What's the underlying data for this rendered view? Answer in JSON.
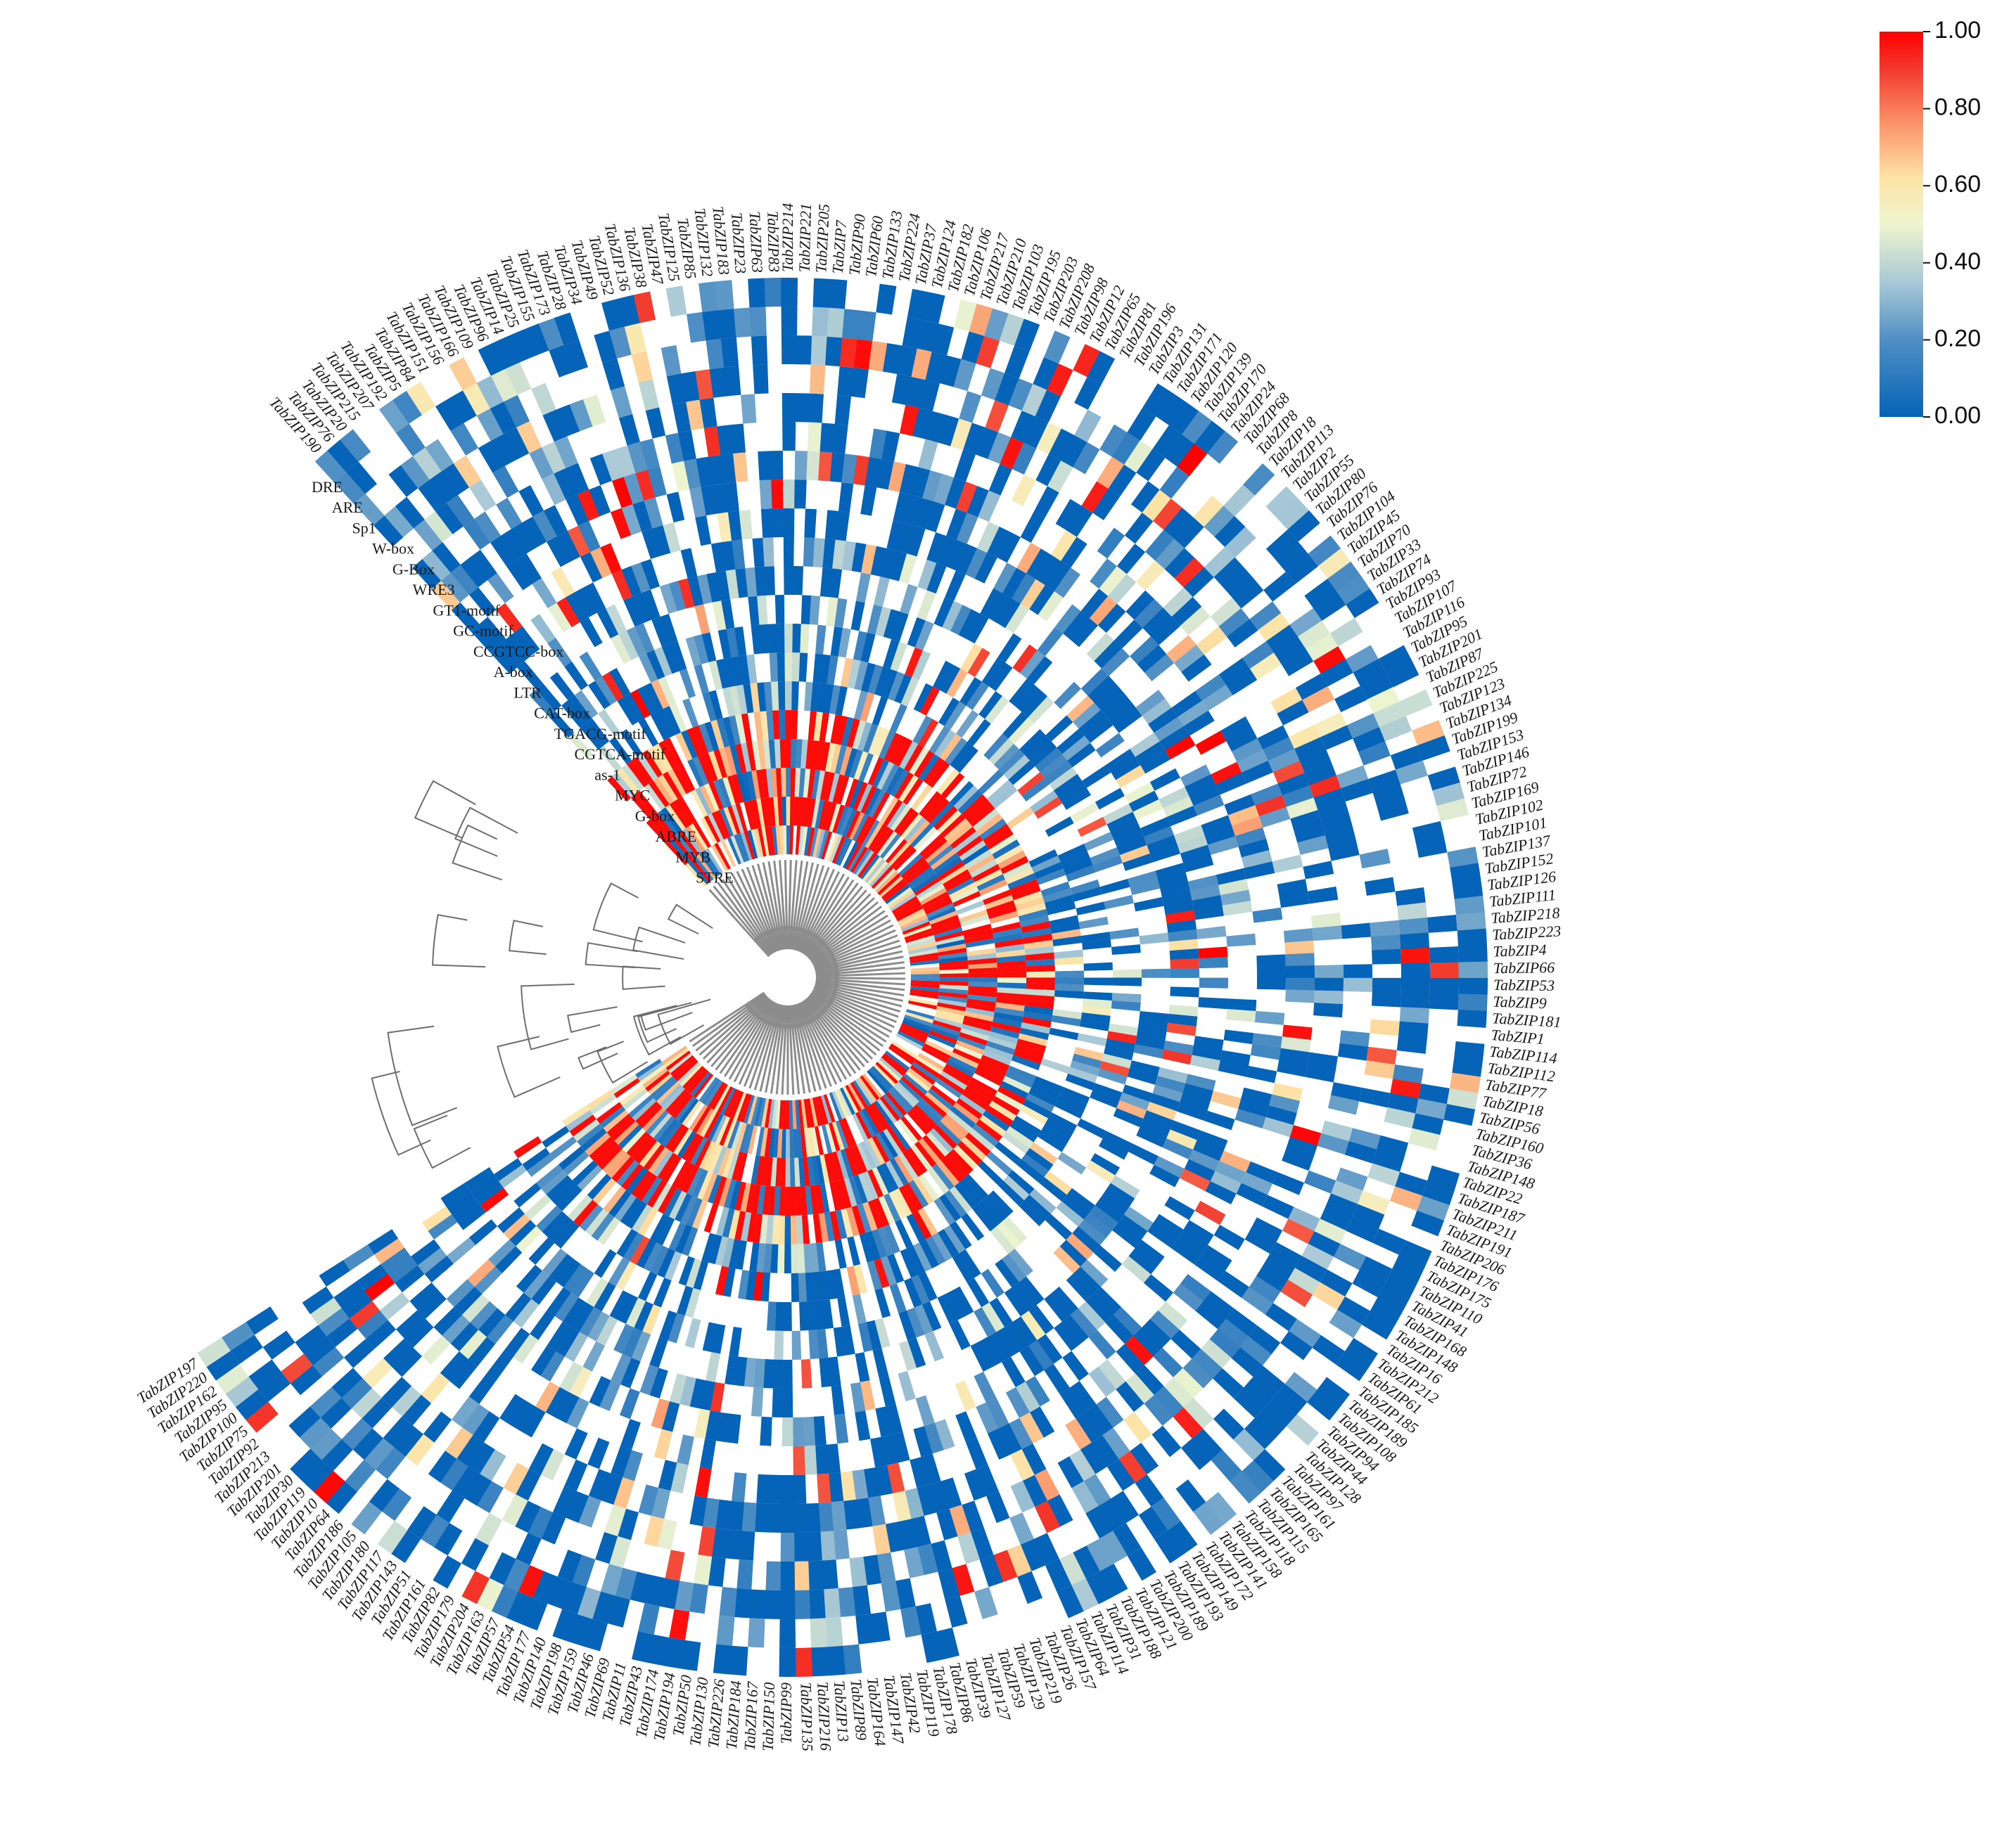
{
  "chart_data": {
    "type": "heatmap",
    "layout": "circular fan heatmap with hierarchical clustering dendrogram",
    "title": "",
    "colorbar": {
      "ticks": [
        "1.00",
        "0.80",
        "0.60",
        "0.40",
        "0.20",
        "0.00"
      ],
      "range": [
        0,
        1
      ],
      "colors": [
        "#0563b8",
        "#9ec7de",
        "#f3f9cc",
        "#fdbf82",
        "#f23b2e",
        "#ff0000"
      ],
      "placement": "top-right"
    },
    "motifs": [
      "STRE",
      "MYB",
      "ABRE",
      "G-box",
      "MYC",
      "as-1",
      "CGTCA-motif",
      "TGACG-motif",
      "CAT-box",
      "LTR",
      "A-box",
      "CCGTCC-box",
      "GC-motif",
      "GT1-motif",
      "WRE3",
      "G-Box",
      "W-box",
      "Sp1",
      "ARE",
      "DRE"
    ],
    "genes": [
      "TabZIP190",
      "TabZIP76",
      "TabZIP20",
      "TabZIP215",
      "TabZIP207",
      "TabZIP192",
      "TabZIP5",
      "TabZIP84",
      "TabZIP151",
      "TabZIP156",
      "TabZIP166",
      "TabZIP109",
      "TabZIP96",
      "TabZIP14",
      "TabZIP25",
      "TabZIP155",
      "TabZIP173",
      "TabZIP28",
      "TabZIP34",
      "TabZIP49",
      "TabZIP52",
      "TabZIP136",
      "TabZIP38",
      "TabZIP47",
      "TabZIP125",
      "TabZIP85",
      "TabZIP132",
      "TabZIP183",
      "TabZIP23",
      "TabZIP63",
      "TabZIP83",
      "TabZIP214",
      "TabZIP221",
      "TabZIP205",
      "TabZIP7",
      "TabZIP90",
      "TabZIP60",
      "TabZIP133",
      "TabZIP224",
      "TabZIP37",
      "TabZIP124",
      "TabZIP182",
      "TabZIP106",
      "TabZIP217",
      "TabZIP210",
      "TabZIP103",
      "TabZIP195",
      "TabZIP203",
      "TabZIP208",
      "TabZIP98",
      "TabZIP12",
      "TabZIP65",
      "TabZIP81",
      "TabZIP196",
      "TabZIP3",
      "TabZIP131",
      "TabZIP171",
      "TabZIP120",
      "TabZIP139",
      "TabZIP170",
      "TabZIP24",
      "TabZIP68",
      "TabZIP8",
      "TabZIP18",
      "TabZIP113",
      "TabZIP2",
      "TabZIP55",
      "TabZIP80",
      "TabZIP76b",
      "TabZIP104",
      "TabZIP45",
      "TabZIP70",
      "TabZIP33",
      "TabZIP74",
      "TabZIP93",
      "TabZIP107",
      "TabZIP116",
      "TabZIP95",
      "TabZIP201",
      "TabZIP87",
      "TabZIP225",
      "TabZIP123",
      "TabZIP134",
      "TabZIP199",
      "TabZIP153",
      "TabZIP146",
      "TabZIP72",
      "TabZIP169",
      "TabZIP102",
      "TabZIP101",
      "TabZIP137",
      "TabZIP152",
      "TabZIP126",
      "TabZIP111",
      "TabZIP218",
      "TabZIP223",
      "TabZIP4",
      "TabZIP66",
      "TabZIP53",
      "TabZIP9",
      "TabZIP181",
      "TabZIP1",
      "TabZIP114",
      "TabZIP112",
      "TabZIP77",
      "TabZIP18b",
      "TabZIP56",
      "TabZIP160",
      "TabZIP36",
      "TabZIP148",
      "TabZIP22",
      "TabZIP187",
      "TabZIP211",
      "TabZIP191",
      "TabZIP206",
      "TabZIP176",
      "TabZIP175",
      "TabZIP110",
      "TabZIP41",
      "TabZIP168",
      "TabZIP148b",
      "TabZIP16",
      "TabZIP212",
      "TabZIP61",
      "TabZIP185",
      "TabZIP189",
      "TabZIP108",
      "TabZIP94",
      "TabZIP44",
      "TabZIP128",
      "TabZIP97",
      "TabZIP161",
      "TabZIP165",
      "TabZIP115",
      "TabZIP118",
      "TabZIP158",
      "TabZIP141",
      "TabZIP172",
      "TabZIP149",
      "TabZIP193",
      "TabZIP189b",
      "TabZIP200",
      "TabZIP121",
      "TabZIP188",
      "TabZIP31",
      "TabZIP114b",
      "TabZIP64",
      "TabZIP157",
      "TabZIP26",
      "TabZIP219",
      "TabZIP129",
      "TabZIP59",
      "TabZIP127",
      "TabZIP39",
      "TabZIP86",
      "TabZIP178",
      "TabZIP119",
      "TabZIP42",
      "TabZIP147",
      "TabZIP164",
      "TabZIP89",
      "TabZIP13",
      "TabZIP216",
      "TabZIP135",
      "TabZIP99",
      "TabZIP150",
      "TabZIP167",
      "TabZIP184",
      "TabZIP226",
      "TabZIP130",
      "TabZIP50",
      "TabZIP194",
      "TabZIP174",
      "TabZIP43",
      "TabZIP11",
      "TabZIP69",
      "TabZIP46",
      "TabZIP159",
      "TabZIP198",
      "TabZIP140",
      "TabZIP177",
      "TabZIP54",
      "TabZIP57",
      "TabZIP163",
      "TabZIP204",
      "TabZIP179",
      "TabZIP82",
      "TabZIP161b",
      "TabZIP51",
      "TabZIP143",
      "TabZIP117",
      "TabZIP180",
      "TabZIP105",
      "TabZIP186",
      "TabZIP64b",
      "TabZIP10",
      "TabZIP119b",
      "TabZIP30",
      "TabZIP201b",
      "TabZIP213",
      "TabZIP92",
      "TabZIP75",
      "TabZIP100",
      "TabZIP95b",
      "TabZIP162",
      "TabZIP220",
      "TabZIP197"
    ],
    "values_note": "cell values on 0.00-1.00 scale",
    "values_seed": 20240517,
    "density": 0.62
  }
}
